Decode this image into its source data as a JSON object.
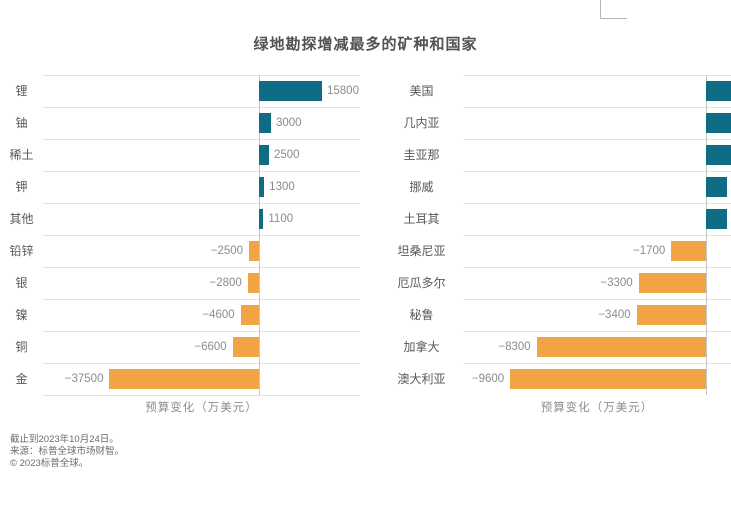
{
  "title": "绿地勘探增减最多的矿种和国家",
  "colors": {
    "positive_bar": "#0f6c85",
    "negative_bar": "#f2a444",
    "gridline": "#e3e3e3",
    "zero_baseline": "#c6c6c6",
    "title_text": "#525252",
    "category_text": "#595959",
    "value_text": "#8c8c8c",
    "footer_text": "#6b6b6b"
  },
  "chart_data": [
    {
      "type": "bar",
      "orientation": "horizontal",
      "title": "绿地勘探增减最多的矿种和国家",
      "xlabel": "预算变化（万美元）",
      "grid": true,
      "legend": false,
      "xlim": [
        -54000,
        25500
      ],
      "categories": [
        "锂",
        "铀",
        "稀土",
        "钾",
        "其他",
        "铅锌",
        "银",
        "镍",
        "铜",
        "金"
      ],
      "values": [
        15800,
        3000,
        2500,
        1300,
        1100,
        -2500,
        -2800,
        -4600,
        -6600,
        -37500
      ],
      "value_labels": [
        "15800",
        "3000",
        "2500",
        "1300",
        "1100",
        "−2500",
        "−2800",
        "−4600",
        "−6600",
        "−37500"
      ]
    },
    {
      "type": "bar",
      "orientation": "horizontal",
      "title": "绿地勘探增减最多的矿种和国家",
      "xlabel": "预算变化（万美元）",
      "grid": true,
      "legend": false,
      "xlim": [
        -11900,
        1225
      ],
      "categories": [
        "美国",
        "几内亚",
        "圭亚那",
        "挪威",
        "土耳其",
        "坦桑尼亚",
        "厄瓜多尔",
        "秘鲁",
        "加拿大",
        "澳大利亚"
      ],
      "values": [
        1320,
        1300,
        1300,
        1050,
        1030,
        -1700,
        -3300,
        -3400,
        -8300,
        -9600
      ],
      "value_labels": [
        "",
        "",
        "",
        "",
        "",
        "−1700",
        "−3300",
        "−3400",
        "−8300",
        "−9600"
      ]
    }
  ],
  "footer": {
    "line1": "截止到2023年10月24日。",
    "line2": "来源：标普全球市场财智。",
    "line3": "© 2023标普全球。"
  }
}
